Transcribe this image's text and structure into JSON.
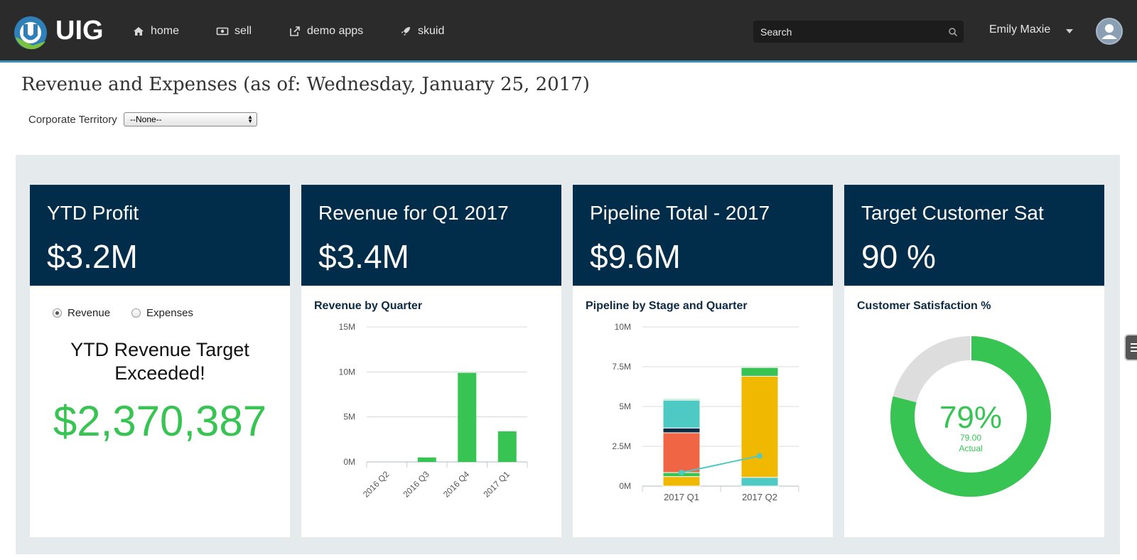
{
  "nav": {
    "brand": "UIG",
    "items": [
      {
        "label": "home",
        "icon": "home-icon"
      },
      {
        "label": "sell",
        "icon": "money-icon"
      },
      {
        "label": "demo apps",
        "icon": "external-link-icon"
      },
      {
        "label": "skuid",
        "icon": "rocket-icon"
      }
    ],
    "search_placeholder": "Search",
    "user_name": "Emily Maxie"
  },
  "page": {
    "title": "Revenue and Expenses (as of: Wednesday, January 25, 2017)",
    "territory_label": "Corporate Territory",
    "territory_value": "--None--"
  },
  "cards": [
    {
      "title": "YTD Profit",
      "value": "$3.2M"
    },
    {
      "title": "Revenue for Q1 2017",
      "value": "$3.4M"
    },
    {
      "title": "Pipeline Total - 2017",
      "value": "$9.6M"
    },
    {
      "title": "Target Customer Sat",
      "value": "90 %"
    }
  ],
  "profit_panel": {
    "radio_options": [
      "Revenue",
      "Expenses"
    ],
    "selected": "Revenue",
    "message": "YTD Revenue Target Exceeded!",
    "amount": "$2,370,387"
  },
  "colors": {
    "header_bg": "#2b2b2b",
    "card_head": "#022d4a",
    "green": "#37c452",
    "teal": "#4ec9c3",
    "orange": "#f06543",
    "yellow": "#f0b900",
    "navy": "#0b2b46",
    "light_grey": "#dddddd"
  },
  "chart_data": [
    {
      "type": "bar",
      "title": "Revenue by Quarter",
      "categories": [
        "2016 Q2",
        "2016 Q3",
        "2016 Q4",
        "2017 Q1"
      ],
      "values": [
        0,
        0.5,
        9.9,
        3.4
      ],
      "y_unit": "M",
      "yticks": [
        "0M",
        "5M",
        "10M",
        "15M"
      ],
      "ylim": [
        0,
        15
      ],
      "color": "#37c452"
    },
    {
      "type": "bar",
      "stacked": true,
      "title": "Pipeline by Stage and Quarter",
      "categories": [
        "2017 Q1",
        "2017 Q2"
      ],
      "yticks": [
        "0M",
        "2.5M",
        "5M",
        "7.5M",
        "10M"
      ],
      "ylim": [
        0,
        10
      ],
      "stacks": [
        [
          {
            "value": 0.6,
            "color": "#f0b900"
          },
          {
            "value": 0.25,
            "color": "#37c452"
          },
          {
            "value": 2.5,
            "color": "#f06543"
          },
          {
            "value": 0.3,
            "color": "#0b2b46"
          },
          {
            "value": 1.75,
            "color": "#4ec9c3"
          },
          {
            "value": 0.1,
            "color": "#b6e8c0"
          }
        ],
        [
          {
            "value": 0.55,
            "color": "#4ec9c3"
          },
          {
            "value": 6.35,
            "color": "#f0b900"
          },
          {
            "value": 0.55,
            "color": "#37c452"
          }
        ]
      ],
      "line": {
        "values": [
          0.85,
          1.9
        ],
        "color": "#4ec9c3"
      }
    },
    {
      "type": "pie",
      "title": "Customer Satisfaction %",
      "value": 79,
      "center_label": "79%",
      "sub_value": "79.00",
      "sub_label": "Actual",
      "fill_color": "#37c452",
      "rest_color": "#dddddd"
    }
  ]
}
